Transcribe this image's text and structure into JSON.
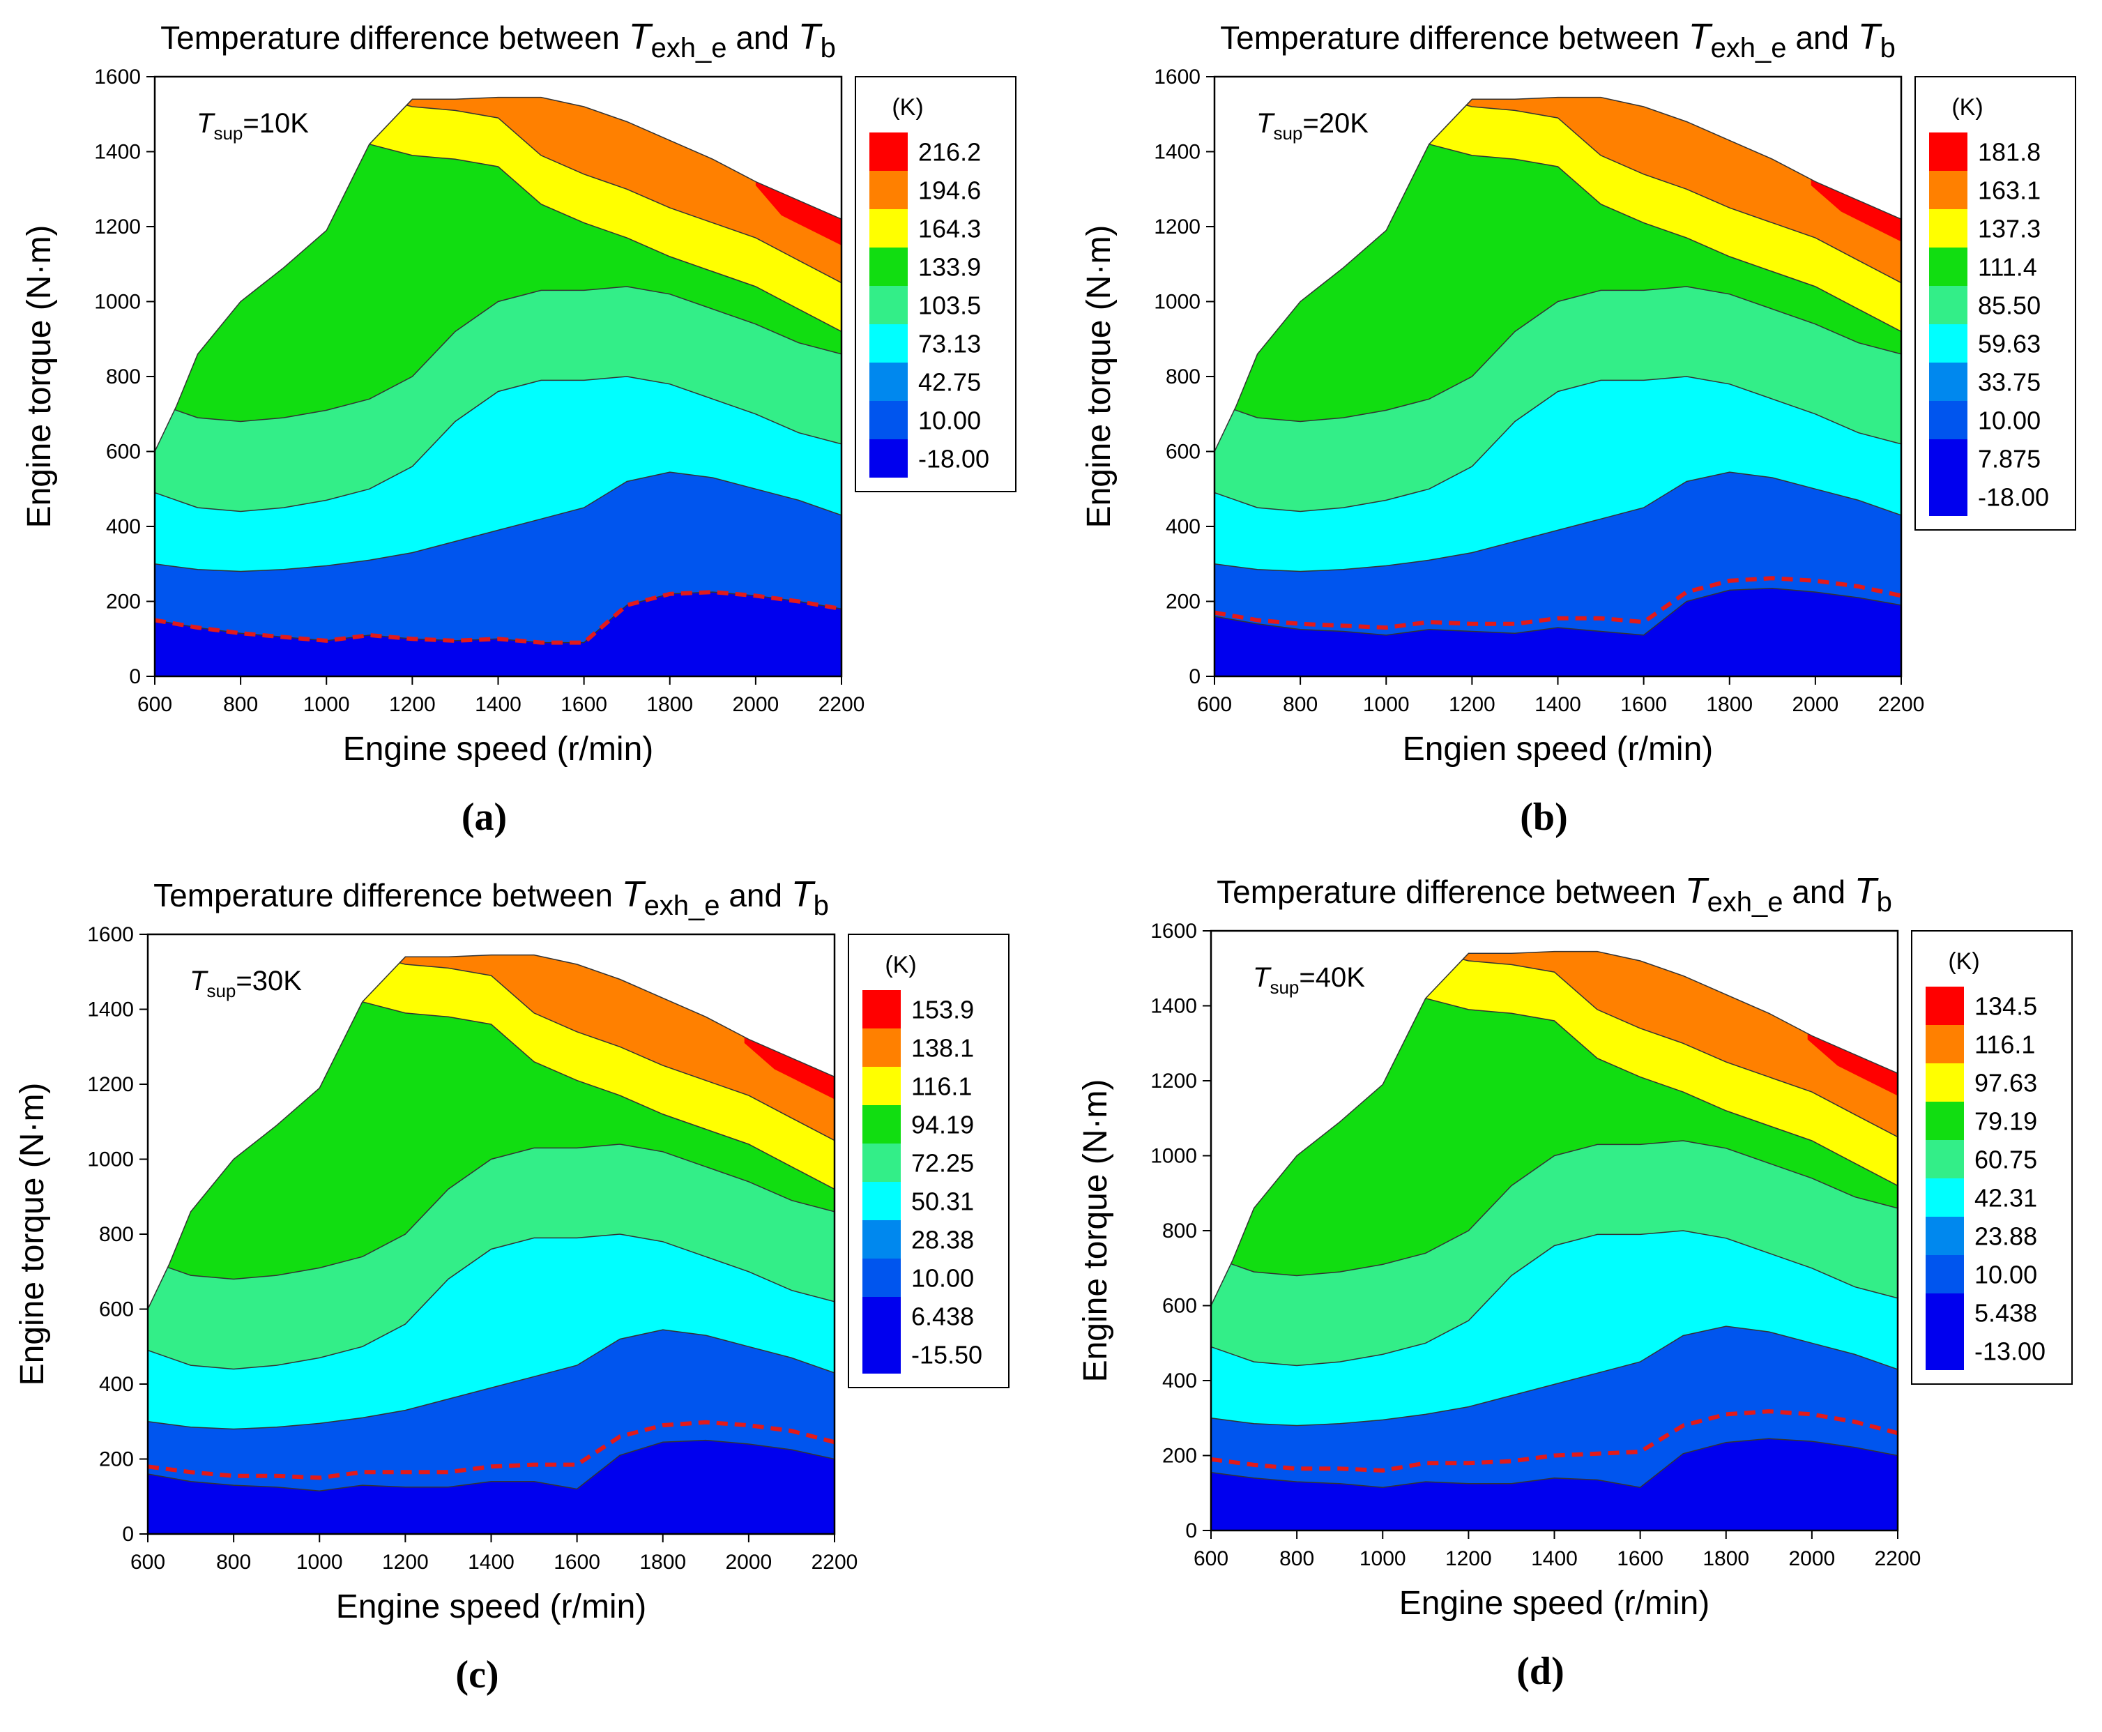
{
  "figure": {
    "panels": [
      {
        "id": "a",
        "caption_label": "a",
        "title_prefix": "Temperature difference between ",
        "title_t1_main": "T",
        "title_t1_sub": "exh_e",
        "title_joiner": " and ",
        "title_t2_main": "T",
        "title_t2_sub": "b",
        "annotation_main": "T",
        "annotation_sub": "sup",
        "annotation_value": "=10K",
        "xlabel": "Engine speed (r/min)",
        "ylabel": "Engine torque (N·m)",
        "legend_unit": "(K)",
        "legend_levels": [
          "216.2",
          "194.6",
          "164.3",
          "133.9",
          "103.5",
          "73.13",
          "42.75",
          "10.00",
          "-18.00"
        ]
      },
      {
        "id": "b",
        "caption_label": "b",
        "title_prefix": "Temperature difference between ",
        "title_t1_main": "T",
        "title_t1_sub": "exh_e",
        "title_joiner": " and ",
        "title_t2_main": "T",
        "title_t2_sub": "b",
        "annotation_main": "T",
        "annotation_sub": "sup",
        "annotation_value": "=20K",
        "xlabel": "Engien speed (r/min)",
        "ylabel": "Engine torque (N·m)",
        "legend_unit": "(K)",
        "legend_levels": [
          "181.8",
          "163.1",
          "137.3",
          "111.4",
          "85.50",
          "59.63",
          "33.75",
          "10.00",
          "7.875",
          "-18.00"
        ]
      },
      {
        "id": "c",
        "caption_label": "c",
        "title_prefix": "Temperature difference between ",
        "title_t1_main": "T",
        "title_t1_sub": "exh_e",
        "title_joiner": " and ",
        "title_t2_main": "T",
        "title_t2_sub": "b",
        "annotation_main": "T",
        "annotation_sub": "sup",
        "annotation_value": "=30K",
        "xlabel": "Engine speed (r/min)",
        "ylabel": "Engine torque (N·m)",
        "legend_unit": "(K)",
        "legend_levels": [
          "153.9",
          "138.1",
          "116.1",
          "94.19",
          "72.25",
          "50.31",
          "28.38",
          "10.00",
          "6.438",
          "-15.50"
        ]
      },
      {
        "id": "d",
        "caption_label": "d",
        "title_prefix": "Temperature difference between ",
        "title_t1_main": "T",
        "title_t1_sub": "exh_e",
        "title_joiner": " and ",
        "title_t2_main": "T",
        "title_t2_sub": "b",
        "annotation_main": "T",
        "annotation_sub": "sup",
        "annotation_value": "=40K",
        "xlabel": "Engine speed (r/min)",
        "ylabel": "Engine torque (N·m)",
        "legend_unit": "(K)",
        "legend_levels": [
          "134.5",
          "116.1",
          "97.63",
          "79.19",
          "60.75",
          "42.31",
          "23.88",
          "10.00",
          "5.438",
          "-13.00"
        ]
      }
    ]
  },
  "chart_data": {
    "type": "contour",
    "xlim": [
      600,
      2200
    ],
    "ylim": [
      0,
      1600
    ],
    "xticks": [
      600,
      800,
      1000,
      1200,
      1400,
      1600,
      1800,
      2000,
      2200
    ],
    "yticks": [
      0,
      200,
      400,
      600,
      800,
      1000,
      1200,
      1400,
      1600
    ],
    "band_colors": [
      "#ff0000",
      "#ff8000",
      "#ffff00",
      "#11dd11",
      "#33ee88",
      "#00ffff",
      "#0088ee",
      "#0055ee",
      "#0000ee"
    ],
    "envelope": [
      [
        600,
        600
      ],
      [
        650,
        720
      ],
      [
        700,
        860
      ],
      [
        800,
        1000
      ],
      [
        900,
        1090
      ],
      [
        1000,
        1190
      ],
      [
        1100,
        1420
      ],
      [
        1200,
        1540
      ],
      [
        1300,
        1540
      ],
      [
        1400,
        1545
      ],
      [
        1500,
        1545
      ],
      [
        1600,
        1520
      ],
      [
        1700,
        1480
      ],
      [
        1800,
        1430
      ],
      [
        1900,
        1380
      ],
      [
        2000,
        1320
      ],
      [
        2100,
        1270
      ],
      [
        2200,
        1220
      ]
    ],
    "boundaries": [
      [
        [
          1100,
          1420
        ],
        [
          1200,
          1390
        ],
        [
          1300,
          1380
        ],
        [
          1400,
          1360
        ],
        [
          1500,
          1260
        ],
        [
          1600,
          1210
        ],
        [
          1700,
          1170
        ],
        [
          1800,
          1120
        ],
        [
          1900,
          1080
        ],
        [
          2000,
          1040
        ],
        [
          2100,
          980
        ],
        [
          2200,
          920
        ]
      ],
      [
        [
          600,
          490
        ],
        [
          700,
          450
        ],
        [
          800,
          440
        ],
        [
          900,
          450
        ],
        [
          1000,
          470
        ],
        [
          1100,
          500
        ],
        [
          1200,
          560
        ],
        [
          1300,
          680
        ],
        [
          1400,
          760
        ],
        [
          1500,
          790
        ],
        [
          1600,
          790
        ],
        [
          1700,
          800
        ],
        [
          1800,
          780
        ],
        [
          1900,
          740
        ],
        [
          2000,
          700
        ],
        [
          2100,
          650
        ],
        [
          2200,
          620
        ]
      ],
      [
        [
          600,
          300
        ],
        [
          700,
          285
        ],
        [
          800,
          280
        ],
        [
          900,
          285
        ],
        [
          1000,
          295
        ],
        [
          1100,
          310
        ],
        [
          1200,
          330
        ],
        [
          1300,
          360
        ],
        [
          1400,
          390
        ],
        [
          1500,
          420
        ],
        [
          1600,
          450
        ],
        [
          1700,
          520
        ],
        [
          1800,
          545
        ],
        [
          1900,
          530
        ],
        [
          2000,
          500
        ],
        [
          2100,
          470
        ],
        [
          2200,
          430
        ]
      ]
    ],
    "series": [
      {
        "panel": "a",
        "boundary_labels": [
          "216.2",
          "194.6",
          "164.3",
          "133.9",
          "103.5",
          "73.13",
          "42.75",
          "10.00",
          "-18.00"
        ],
        "zero_contour": [
          [
            600,
            150
          ],
          [
            700,
            130
          ],
          [
            800,
            115
          ],
          [
            900,
            105
          ],
          [
            1000,
            95
          ],
          [
            1100,
            110
          ],
          [
            1200,
            100
          ],
          [
            1300,
            95
          ],
          [
            1400,
            100
          ],
          [
            1500,
            90
          ],
          [
            1600,
            90
          ],
          [
            1700,
            190
          ],
          [
            1800,
            220
          ],
          [
            1900,
            225
          ],
          [
            2000,
            215
          ],
          [
            2100,
            200
          ],
          [
            2200,
            180
          ]
        ],
        "dashed_contour": [
          [
            600,
            150
          ],
          [
            700,
            130
          ],
          [
            800,
            115
          ],
          [
            900,
            105
          ],
          [
            1000,
            95
          ],
          [
            1100,
            110
          ],
          [
            1200,
            100
          ],
          [
            1300,
            95
          ],
          [
            1400,
            100
          ],
          [
            1500,
            90
          ],
          [
            1600,
            90
          ],
          [
            1700,
            190
          ],
          [
            1800,
            220
          ],
          [
            1900,
            225
          ],
          [
            2000,
            215
          ],
          [
            2100,
            200
          ],
          [
            2200,
            180
          ]
        ],
        "red_corner": [
          [
            2000,
            1310
          ],
          [
            2060,
            1230
          ],
          [
            2200,
            1150
          ]
        ]
      },
      {
        "panel": "b",
        "boundary_labels": [
          "181.8",
          "163.1",
          "137.3",
          "111.4",
          "85.50",
          "59.63",
          "33.75",
          "10.00",
          "7.875",
          "-18.00"
        ],
        "zero_contour": [
          [
            600,
            160
          ],
          [
            700,
            140
          ],
          [
            800,
            125
          ],
          [
            900,
            120
          ],
          [
            1000,
            110
          ],
          [
            1100,
            125
          ],
          [
            1200,
            120
          ],
          [
            1300,
            115
          ],
          [
            1400,
            130
          ],
          [
            1500,
            120
          ],
          [
            1600,
            110
          ],
          [
            1700,
            200
          ],
          [
            1800,
            230
          ],
          [
            1900,
            235
          ],
          [
            2000,
            225
          ],
          [
            2100,
            210
          ],
          [
            2200,
            190
          ]
        ],
        "dashed_contour": [
          [
            600,
            170
          ],
          [
            700,
            150
          ],
          [
            800,
            140
          ],
          [
            900,
            135
          ],
          [
            1000,
            130
          ],
          [
            1100,
            145
          ],
          [
            1200,
            140
          ],
          [
            1300,
            140
          ],
          [
            1400,
            155
          ],
          [
            1500,
            155
          ],
          [
            1600,
            145
          ],
          [
            1700,
            225
          ],
          [
            1800,
            255
          ],
          [
            1900,
            262
          ],
          [
            2000,
            255
          ],
          [
            2100,
            240
          ],
          [
            2200,
            215
          ]
        ],
        "red_corner": [
          [
            1990,
            1310
          ],
          [
            2060,
            1240
          ],
          [
            2200,
            1160
          ]
        ]
      },
      {
        "panel": "c",
        "boundary_labels": [
          "153.9",
          "138.1",
          "116.1",
          "94.19",
          "72.25",
          "50.31",
          "28.38",
          "10.00",
          "6.438",
          "-15.50"
        ],
        "zero_contour": [
          [
            600,
            160
          ],
          [
            700,
            140
          ],
          [
            800,
            130
          ],
          [
            900,
            125
          ],
          [
            1000,
            115
          ],
          [
            1100,
            130
          ],
          [
            1200,
            125
          ],
          [
            1300,
            125
          ],
          [
            1400,
            140
          ],
          [
            1500,
            140
          ],
          [
            1600,
            120
          ],
          [
            1700,
            210
          ],
          [
            1800,
            245
          ],
          [
            1900,
            250
          ],
          [
            2000,
            240
          ],
          [
            2100,
            225
          ],
          [
            2200,
            200
          ]
        ],
        "dashed_contour": [
          [
            600,
            180
          ],
          [
            700,
            165
          ],
          [
            800,
            155
          ],
          [
            900,
            155
          ],
          [
            1000,
            150
          ],
          [
            1100,
            165
          ],
          [
            1200,
            165
          ],
          [
            1300,
            165
          ],
          [
            1400,
            180
          ],
          [
            1500,
            185
          ],
          [
            1600,
            185
          ],
          [
            1700,
            260
          ],
          [
            1800,
            290
          ],
          [
            1900,
            298
          ],
          [
            2000,
            290
          ],
          [
            2100,
            275
          ],
          [
            2200,
            245
          ]
        ],
        "red_corner": [
          [
            1990,
            1310
          ],
          [
            2060,
            1240
          ],
          [
            2200,
            1160
          ]
        ]
      },
      {
        "panel": "d",
        "boundary_labels": [
          "134.5",
          "116.1",
          "97.63",
          "79.19",
          "60.75",
          "42.31",
          "23.88",
          "10.00",
          "5.438",
          "-13.00"
        ],
        "zero_contour": [
          [
            600,
            155
          ],
          [
            700,
            140
          ],
          [
            800,
            130
          ],
          [
            900,
            125
          ],
          [
            1000,
            115
          ],
          [
            1100,
            130
          ],
          [
            1200,
            125
          ],
          [
            1300,
            125
          ],
          [
            1400,
            140
          ],
          [
            1500,
            135
          ],
          [
            1600,
            115
          ],
          [
            1700,
            205
          ],
          [
            1800,
            235
          ],
          [
            1900,
            245
          ],
          [
            2000,
            238
          ],
          [
            2100,
            222
          ],
          [
            2200,
            200
          ]
        ],
        "dashed_contour": [
          [
            600,
            190
          ],
          [
            700,
            175
          ],
          [
            800,
            165
          ],
          [
            900,
            165
          ],
          [
            1000,
            160
          ],
          [
            1100,
            180
          ],
          [
            1200,
            180
          ],
          [
            1300,
            185
          ],
          [
            1400,
            200
          ],
          [
            1500,
            205
          ],
          [
            1600,
            210
          ],
          [
            1700,
            280
          ],
          [
            1800,
            310
          ],
          [
            1900,
            318
          ],
          [
            2000,
            310
          ],
          [
            2100,
            290
          ],
          [
            2200,
            260
          ]
        ],
        "red_corner": [
          [
            1990,
            1310
          ],
          [
            2060,
            1240
          ],
          [
            2200,
            1160
          ]
        ]
      }
    ]
  }
}
